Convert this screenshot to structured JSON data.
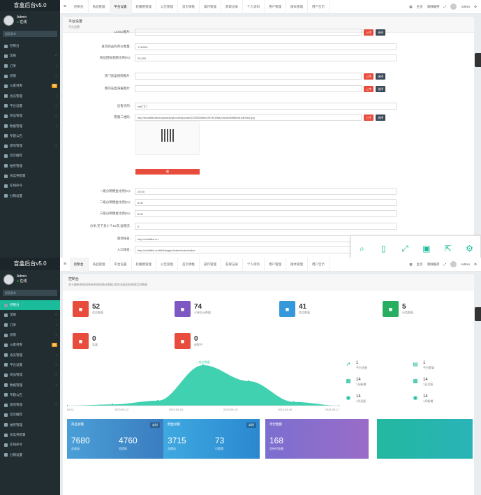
{
  "sidebar": {
    "brand": "盲盒后台v5.0",
    "user": "Admin",
    "status": "在线",
    "search": "搜索菜单",
    "items": [
      {
        "label": "控制台",
        "arrow": false,
        "active": true
      },
      {
        "label": "常规",
        "arrow": true
      },
      {
        "label": "订单",
        "arrow": true
      },
      {
        "label": "权限",
        "arrow": true
      },
      {
        "label": "UI素材库",
        "arrow": false,
        "tag": "新"
      },
      {
        "label": "会员管理",
        "arrow": true
      },
      {
        "label": "平台设置",
        "arrow": true
      },
      {
        "label": "商品管理",
        "arrow": true
      },
      {
        "label": "数据管理",
        "arrow": true
      },
      {
        "label": "专题公告",
        "arrow": false
      },
      {
        "label": "提现管理",
        "arrow": true
      },
      {
        "label": "首页推荐",
        "arrow": false
      },
      {
        "label": "抽奖管理",
        "arrow": false
      },
      {
        "label": "盲盒券配置",
        "arrow": false
      },
      {
        "label": "在线命令",
        "arrow": false
      },
      {
        "label": "分销设置",
        "arrow": false
      }
    ]
  },
  "topbar": {
    "tabs": [
      "控制台",
      "商品管理",
      "平台设置",
      "轮播图管理",
      "公告管理",
      "首页弹框",
      "操作管理",
      "获取记录",
      "个人资料",
      "用户管理",
      "版本管理",
      "用户告示"
    ],
    "tabs2": [
      "控制台",
      "商品管理",
      "平台设置",
      "轮播图管理",
      "公告管理",
      "首页弹框",
      "操作管理",
      "获取记录",
      "个人资料",
      "用户管理",
      "版本管理",
      "用户告示"
    ],
    "home": "主页",
    "clear": "清除缓存",
    "admin": "Admin"
  },
  "settings": {
    "title": "平台设置",
    "sub": "平台设置",
    "upload": "上传",
    "choose": "选择",
    "del": "删",
    "rows": [
      {
        "label": "LOGO图片:",
        "value": "",
        "buttons": true
      },
      {
        "label": "发货商品的单价数量:",
        "value": "1.00000",
        "buttons": false
      },
      {
        "label": "商品回收金额比例(%):",
        "value": "20.000",
        "buttons": false
      },
      {
        "label": "热门盲盒视频图片:",
        "value": "",
        "buttons": true
      },
      {
        "label": "我的盲盒海报图片:",
        "value": "",
        "buttons": true
      },
      {
        "label": "出售买的:",
        "value": "sell门门",
        "buttons": false
      },
      {
        "label": "客服二维码:",
        "value": "http://box888.sitex/uploads/qrcode/upload/20230608/6c49f7441f6a1d4cdc5bf6d9a1d4b0a1.jpg",
        "buttons": true
      },
      {
        "label": "一级分销佣金比例(%):",
        "value": "20.00",
        "buttons": false
      },
      {
        "label": "二级分销佣金比例(%):",
        "value": "5.00",
        "buttons": false
      },
      {
        "label": "三级分销佣金比例(%):",
        "value": "5.00",
        "buttons": false
      },
      {
        "label": "分享,天下多少个10次,返佣次:",
        "value": "0",
        "buttons": false
      },
      {
        "label": "落地域名:",
        "value": "http://c4d8fee.cn",
        "buttons": false
      },
      {
        "label": "入口域名:",
        "value": "http://c4d8fee.cn/h5/#/pages/index/index/index",
        "buttons": false
      }
    ]
  },
  "dashboard": {
    "title": "控制台",
    "sub": "关于最新系统和所有系统的统计数据,帮你迅速读取系统实时数据",
    "stats": [
      {
        "value": "52",
        "label": "会员数量",
        "color": "#e74c3c",
        "icon": "users-icon"
      },
      {
        "value": "74",
        "label": "订单总计数据",
        "color": "#7e57c2",
        "icon": "cart-icon"
      },
      {
        "value": "41",
        "label": "商品数量",
        "color": "#3498db",
        "icon": "leaf-icon"
      },
      {
        "value": "5",
        "label": "分类数量",
        "color": "#27ae60",
        "icon": "box-icon"
      },
      {
        "value": "0",
        "label": "盲盒",
        "color": "#e74c3c",
        "icon": "users-icon"
      },
      {
        "value": "0",
        "label": "退款中",
        "color": "#e74c3c",
        "icon": "users-icon"
      }
    ],
    "legend": "成交数据",
    "right": [
      {
        "value": "1",
        "label": "今日注册"
      },
      {
        "value": "1",
        "label": "今日登录"
      },
      {
        "value": "14",
        "label": "7日新增"
      },
      {
        "value": "14",
        "label": "7日活跃"
      },
      {
        "value": "14",
        "label": "1月活跃"
      },
      {
        "value": "14",
        "label": "1月新增"
      }
    ],
    "cards": [
      {
        "title": "商品总额",
        "badge": "实时",
        "v1": "7680",
        "l1": "总收益",
        "v2": "4760",
        "l2": "总提现",
        "color1": "#4a9fd8",
        "color2": "#3a7dc0"
      },
      {
        "title": "佣金总额",
        "badge": "实时",
        "v1": "3715",
        "l1": "总佣金",
        "v2": "73",
        "l2": "已提佣",
        "color1": "#3fa9e0",
        "color2": "#2b88d0"
      },
      {
        "title": "待付金额",
        "badge": "",
        "v1": "168",
        "l1": "总待付金额",
        "v2": "",
        "l2": "",
        "color1": "#7b6fd0",
        "color2": "#9a6cc8"
      },
      {
        "title": "",
        "badge": "",
        "v1": "",
        "l1": "",
        "v2": "",
        "l2": "",
        "color1": "#22b8a0",
        "color2": "#2ab3b8"
      }
    ]
  },
  "chart_data": {
    "type": "area",
    "x": [
      "2023-06-11",
      "2023-06-12",
      "2023-06-13",
      "2023-06-14",
      "2023-06-15",
      "2023-06-16",
      "2023-06-17"
    ],
    "tick_labels": [
      "06-11",
      "2023-06-12",
      "2023-06-14",
      "2023-06-15",
      "2023-06-16",
      "2023-06-17"
    ],
    "values": [
      0,
      1,
      4,
      33,
      20,
      3,
      0
    ],
    "series": [
      {
        "name": "成交数据",
        "color": "#3fd1b0"
      }
    ]
  }
}
